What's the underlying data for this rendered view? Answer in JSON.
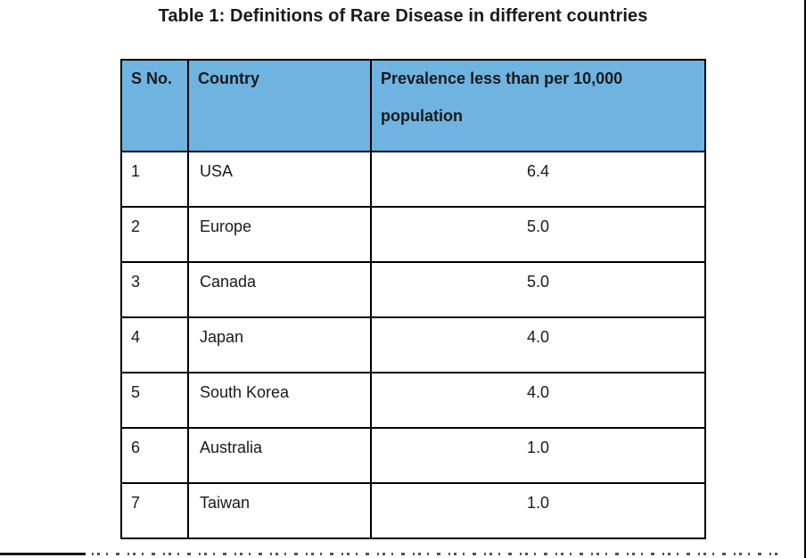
{
  "colors": {
    "header_bg": "#6FB3E1",
    "border": "#000000",
    "text": "#1a1a1a"
  },
  "title": "Table 1: Definitions of Rare Disease in different countries",
  "table": {
    "columns": [
      {
        "key": "sno",
        "label": "S No."
      },
      {
        "key": "country",
        "label": "Country"
      },
      {
        "key": "prevalence",
        "label_line1": "Prevalence less than per 10,000",
        "label_line2": "population"
      }
    ],
    "rows": [
      {
        "sno": "1",
        "country": "USA",
        "prevalence": "6.4"
      },
      {
        "sno": "2",
        "country": "Europe",
        "prevalence": "5.0"
      },
      {
        "sno": "3",
        "country": "Canada",
        "prevalence": "5.0"
      },
      {
        "sno": "4",
        "country": "Japan",
        "prevalence": "4.0"
      },
      {
        "sno": "5",
        "country": "South Korea",
        "prevalence": "4.0"
      },
      {
        "sno": "6",
        "country": "Australia",
        "prevalence": "1.0"
      },
      {
        "sno": "7",
        "country": "Taiwan",
        "prevalence": "1.0"
      }
    ]
  }
}
